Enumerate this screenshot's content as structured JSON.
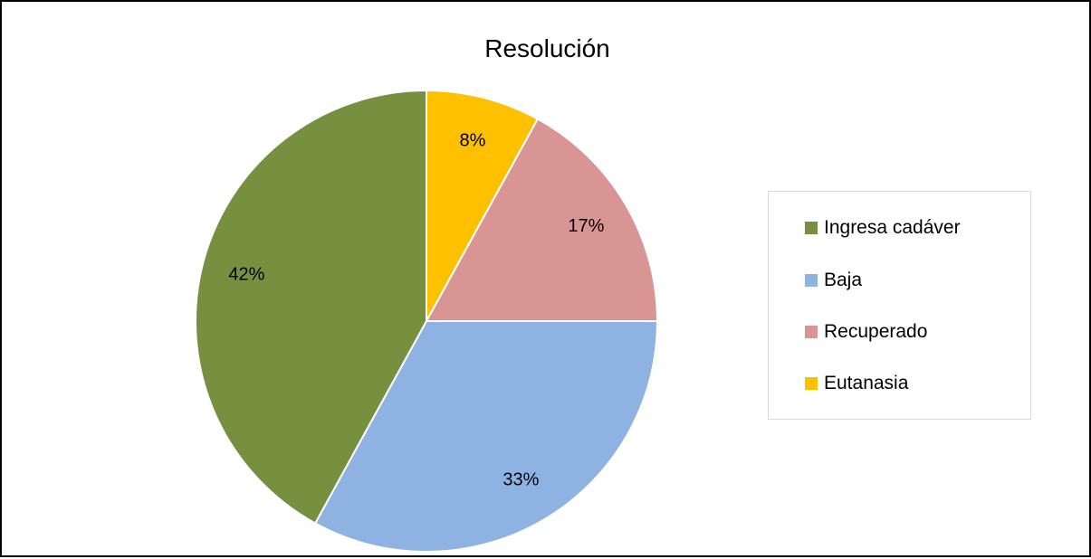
{
  "chart_data": {
    "type": "pie",
    "title": "Resolución",
    "categories": [
      "Ingresa cadáver",
      "Baja",
      "Recuperado",
      "Eutanasia"
    ],
    "values": [
      42,
      33,
      17,
      8
    ],
    "labels": [
      "42%",
      "33%",
      "17%",
      "8%"
    ],
    "colors": [
      "#77903f",
      "#8eb3e2",
      "#d99594",
      "#ffc000"
    ],
    "legend_position": "right"
  }
}
